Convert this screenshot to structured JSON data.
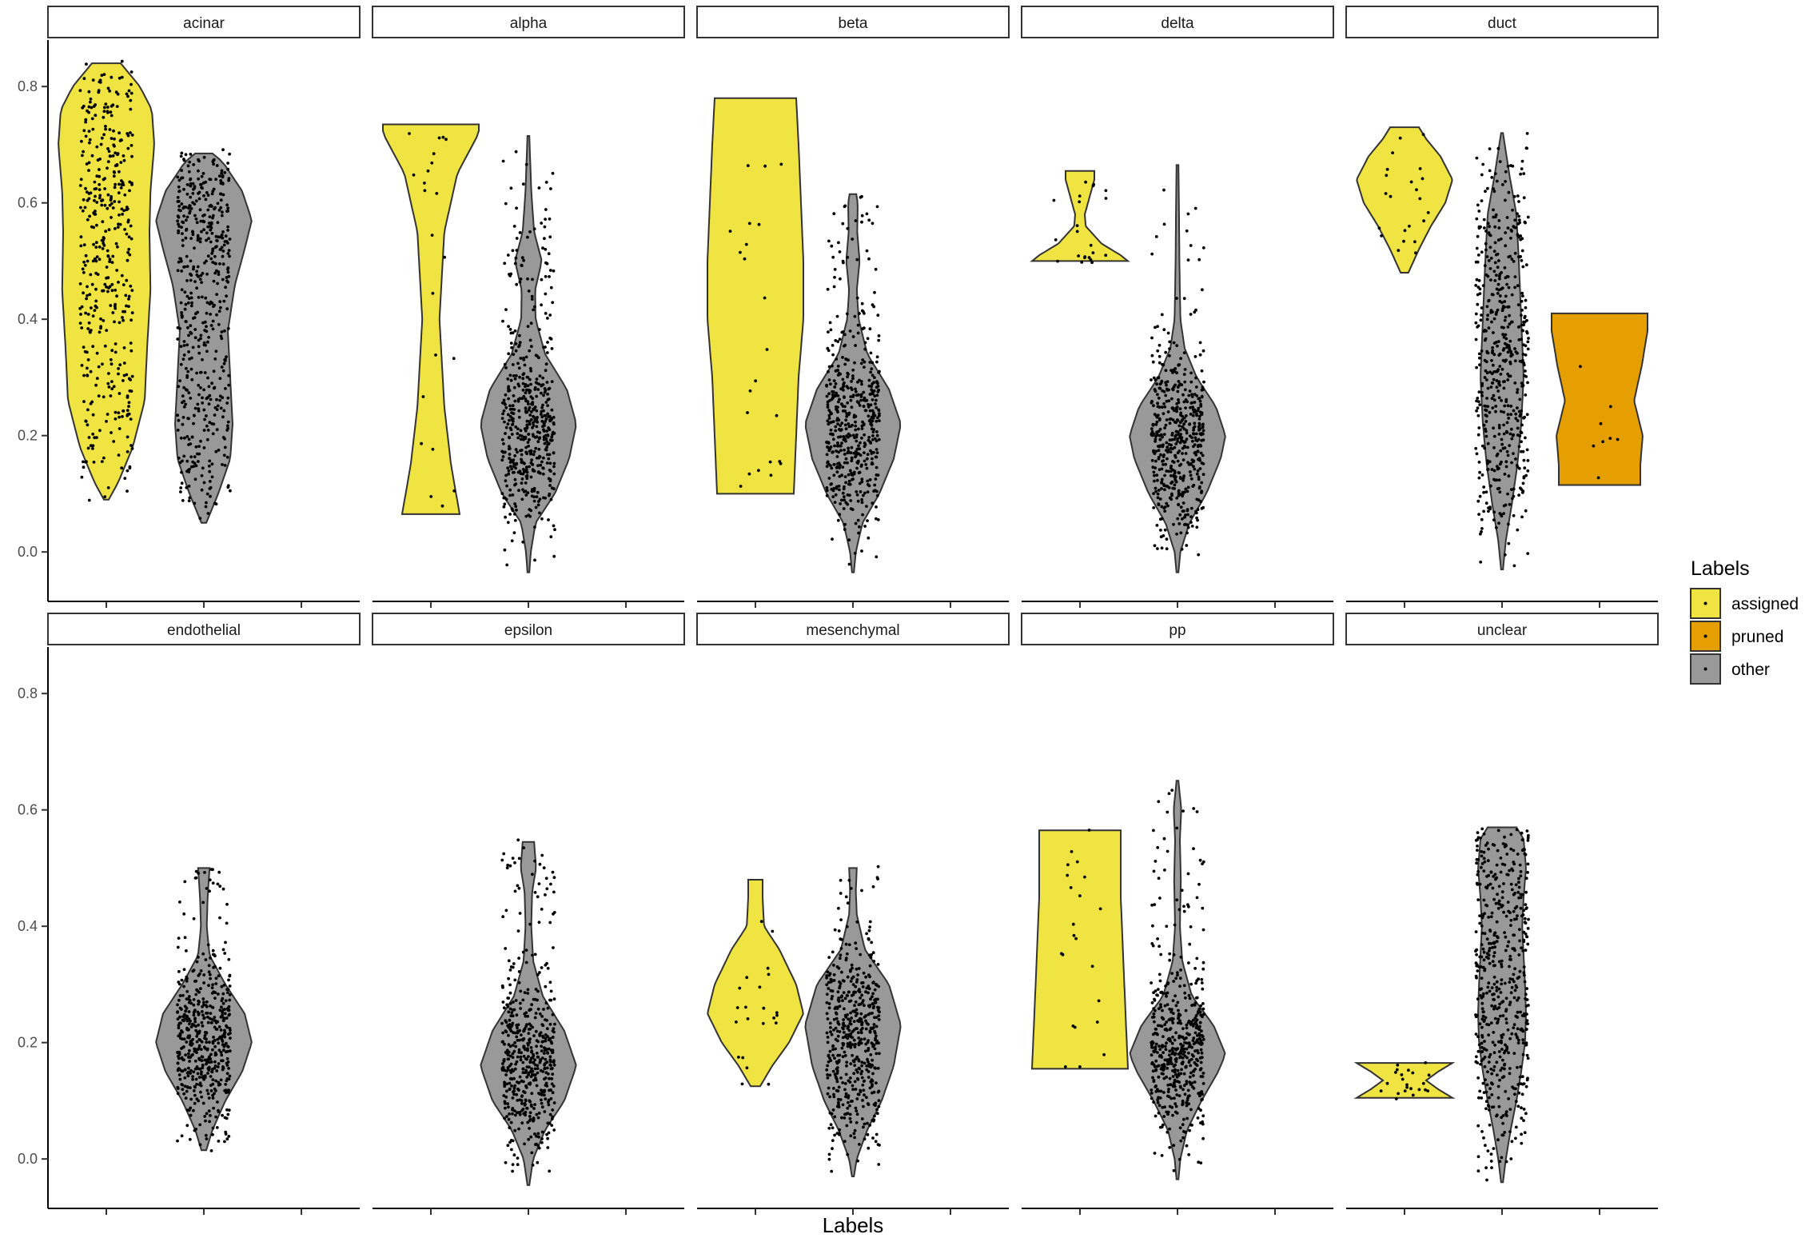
{
  "chart_data": {
    "type": "violin",
    "xlabel": "Labels",
    "ylabel": "",
    "ylim": [
      -0.085,
      0.88
    ],
    "yticks": [
      "0.0",
      "0.2",
      "0.4",
      "0.6",
      "0.8"
    ],
    "ytick_values": [
      0,
      0.2,
      0.4,
      0.6,
      0.8
    ],
    "grid": false,
    "legend": {
      "title": "Labels",
      "placement": "right",
      "entries": [
        {
          "label": "assigned",
          "color": "#F0E442"
        },
        {
          "label": "pruned",
          "color": "#E69F00"
        },
        {
          "label": "other",
          "color": "#999999"
        }
      ]
    },
    "x_positions": [
      "assigned",
      "other",
      "pruned"
    ],
    "panels": [
      {
        "name": "acinar",
        "violins": [
          {
            "group": "assigned",
            "min": 0.09,
            "max": 0.84,
            "profile": [
              [
                0.09,
                0.05
              ],
              [
                0.12,
                0.25
              ],
              [
                0.18,
                0.55
              ],
              [
                0.26,
                0.8
              ],
              [
                0.35,
                0.85
              ],
              [
                0.45,
                0.92
              ],
              [
                0.55,
                0.9
              ],
              [
                0.62,
                0.92
              ],
              [
                0.7,
                1.0
              ],
              [
                0.76,
                0.95
              ],
              [
                0.8,
                0.7
              ],
              [
                0.84,
                0.3
              ]
            ]
          },
          {
            "group": "other",
            "min": 0.05,
            "max": 0.685,
            "profile": [
              [
                0.05,
                0.05
              ],
              [
                0.1,
                0.3
              ],
              [
                0.16,
                0.55
              ],
              [
                0.22,
                0.6
              ],
              [
                0.3,
                0.55
              ],
              [
                0.38,
                0.5
              ],
              [
                0.46,
                0.65
              ],
              [
                0.52,
                0.85
              ],
              [
                0.57,
                1.0
              ],
              [
                0.62,
                0.8
              ],
              [
                0.67,
                0.4
              ],
              [
                0.685,
                0.18
              ]
            ]
          }
        ]
      },
      {
        "name": "alpha",
        "violins": [
          {
            "group": "assigned",
            "min": 0.065,
            "max": 0.735,
            "profile": [
              [
                0.065,
                0.6
              ],
              [
                0.15,
                0.42
              ],
              [
                0.25,
                0.28
              ],
              [
                0.4,
                0.18
              ],
              [
                0.55,
                0.28
              ],
              [
                0.65,
                0.55
              ],
              [
                0.72,
                1.0
              ],
              [
                0.735,
                1.0
              ]
            ]
          },
          {
            "group": "other",
            "min": -0.035,
            "max": 0.715,
            "profile": [
              [
                -0.035,
                0.02
              ],
              [
                0.0,
                0.05
              ],
              [
                0.05,
                0.15
              ],
              [
                0.1,
                0.55
              ],
              [
                0.16,
                0.85
              ],
              [
                0.22,
                1.0
              ],
              [
                0.28,
                0.8
              ],
              [
                0.34,
                0.35
              ],
              [
                0.4,
                0.15
              ],
              [
                0.45,
                0.14
              ],
              [
                0.5,
                0.28
              ],
              [
                0.55,
                0.12
              ],
              [
                0.62,
                0.06
              ],
              [
                0.715,
                0.02
              ]
            ]
          }
        ]
      },
      {
        "name": "beta",
        "violins": [
          {
            "group": "assigned",
            "min": 0.1,
            "max": 0.78,
            "profile": [
              [
                0.1,
                0.8
              ],
              [
                0.2,
                0.85
              ],
              [
                0.3,
                0.9
              ],
              [
                0.4,
                1.0
              ],
              [
                0.5,
                1.0
              ],
              [
                0.6,
                0.95
              ],
              [
                0.7,
                0.9
              ],
              [
                0.78,
                0.85
              ]
            ]
          },
          {
            "group": "other",
            "min": -0.035,
            "max": 0.615,
            "profile": [
              [
                -0.035,
                0.02
              ],
              [
                0.0,
                0.06
              ],
              [
                0.05,
                0.2
              ],
              [
                0.1,
                0.55
              ],
              [
                0.16,
                0.85
              ],
              [
                0.22,
                1.0
              ],
              [
                0.28,
                0.75
              ],
              [
                0.34,
                0.3
              ],
              [
                0.4,
                0.12
              ],
              [
                0.45,
                0.08
              ],
              [
                0.5,
                0.14
              ],
              [
                0.55,
                0.09
              ],
              [
                0.6,
                0.1
              ],
              [
                0.615,
                0.07
              ]
            ]
          }
        ]
      },
      {
        "name": "delta",
        "violins": [
          {
            "group": "assigned",
            "min": 0.5,
            "max": 0.655,
            "profile": [
              [
                0.5,
                1.0
              ],
              [
                0.51,
                0.85
              ],
              [
                0.53,
                0.45
              ],
              [
                0.56,
                0.12
              ],
              [
                0.58,
                0.1
              ],
              [
                0.61,
                0.2
              ],
              [
                0.64,
                0.3
              ],
              [
                0.655,
                0.3
              ]
            ]
          },
          {
            "group": "other",
            "min": -0.035,
            "max": 0.665,
            "profile": [
              [
                -0.035,
                0.02
              ],
              [
                0.0,
                0.06
              ],
              [
                0.05,
                0.25
              ],
              [
                0.1,
                0.6
              ],
              [
                0.16,
                0.9
              ],
              [
                0.2,
                1.0
              ],
              [
                0.25,
                0.8
              ],
              [
                0.3,
                0.4
              ],
              [
                0.35,
                0.15
              ],
              [
                0.4,
                0.06
              ],
              [
                0.5,
                0.04
              ],
              [
                0.6,
                0.03
              ],
              [
                0.665,
                0.02
              ]
            ]
          }
        ]
      },
      {
        "name": "duct",
        "violins": [
          {
            "group": "assigned",
            "min": 0.48,
            "max": 0.73,
            "profile": [
              [
                0.48,
                0.08
              ],
              [
                0.52,
                0.3
              ],
              [
                0.56,
                0.55
              ],
              [
                0.6,
                0.85
              ],
              [
                0.64,
                1.0
              ],
              [
                0.68,
                0.75
              ],
              [
                0.71,
                0.45
              ],
              [
                0.73,
                0.3
              ]
            ]
          },
          {
            "group": "pruned",
            "min": 0.115,
            "max": 0.41,
            "profile": [
              [
                0.115,
                0.85
              ],
              [
                0.15,
                0.85
              ],
              [
                0.2,
                0.9
              ],
              [
                0.26,
                0.72
              ],
              [
                0.32,
                0.88
              ],
              [
                0.38,
                1.0
              ],
              [
                0.41,
                1.0
              ]
            ]
          },
          {
            "group": "other",
            "min": -0.03,
            "max": 0.72,
            "profile": [
              [
                -0.03,
                0.02
              ],
              [
                0.02,
                0.08
              ],
              [
                0.08,
                0.2
              ],
              [
                0.15,
                0.32
              ],
              [
                0.22,
                0.4
              ],
              [
                0.3,
                0.45
              ],
              [
                0.4,
                0.4
              ],
              [
                0.5,
                0.35
              ],
              [
                0.58,
                0.3
              ],
              [
                0.65,
                0.15
              ],
              [
                0.72,
                0.02
              ]
            ]
          }
        ]
      },
      {
        "name": "endothelial",
        "violins": [
          {
            "group": "other",
            "min": 0.015,
            "max": 0.5,
            "profile": [
              [
                0.015,
                0.05
              ],
              [
                0.05,
                0.18
              ],
              [
                0.1,
                0.45
              ],
              [
                0.15,
                0.8
              ],
              [
                0.2,
                1.0
              ],
              [
                0.25,
                0.85
              ],
              [
                0.3,
                0.45
              ],
              [
                0.35,
                0.12
              ],
              [
                0.4,
                0.06
              ],
              [
                0.45,
                0.08
              ],
              [
                0.5,
                0.12
              ]
            ]
          }
        ]
      },
      {
        "name": "epsilon",
        "violins": [
          {
            "group": "other",
            "min": -0.045,
            "max": 0.545,
            "profile": [
              [
                -0.045,
                0.02
              ],
              [
                0.0,
                0.1
              ],
              [
                0.05,
                0.35
              ],
              [
                0.1,
                0.75
              ],
              [
                0.16,
                1.0
              ],
              [
                0.22,
                0.75
              ],
              [
                0.28,
                0.3
              ],
              [
                0.34,
                0.1
              ],
              [
                0.4,
                0.06
              ],
              [
                0.46,
                0.08
              ],
              [
                0.5,
                0.16
              ],
              [
                0.545,
                0.12
              ]
            ]
          }
        ]
      },
      {
        "name": "mesenchymal",
        "violins": [
          {
            "group": "assigned",
            "min": 0.125,
            "max": 0.48,
            "profile": [
              [
                0.125,
                0.1
              ],
              [
                0.16,
                0.35
              ],
              [
                0.2,
                0.7
              ],
              [
                0.25,
                1.0
              ],
              [
                0.3,
                0.85
              ],
              [
                0.36,
                0.5
              ],
              [
                0.4,
                0.18
              ],
              [
                0.45,
                0.15
              ],
              [
                0.48,
                0.15
              ]
            ]
          },
          {
            "group": "other",
            "min": -0.03,
            "max": 0.5,
            "profile": [
              [
                -0.03,
                0.02
              ],
              [
                0.0,
                0.08
              ],
              [
                0.05,
                0.3
              ],
              [
                0.1,
                0.6
              ],
              [
                0.16,
                0.85
              ],
              [
                0.23,
                1.0
              ],
              [
                0.3,
                0.75
              ],
              [
                0.36,
                0.25
              ],
              [
                0.42,
                0.08
              ],
              [
                0.46,
                0.06
              ],
              [
                0.5,
                0.08
              ]
            ]
          }
        ]
      },
      {
        "name": "pp",
        "violins": [
          {
            "group": "assigned",
            "min": 0.155,
            "max": 0.565,
            "profile": [
              [
                0.155,
                1.0
              ],
              [
                0.25,
                0.95
              ],
              [
                0.35,
                0.9
              ],
              [
                0.45,
                0.85
              ],
              [
                0.55,
                0.85
              ],
              [
                0.565,
                0.85
              ]
            ]
          },
          {
            "group": "other",
            "min": -0.035,
            "max": 0.65,
            "profile": [
              [
                -0.035,
                0.02
              ],
              [
                0.0,
                0.06
              ],
              [
                0.05,
                0.2
              ],
              [
                0.1,
                0.5
              ],
              [
                0.15,
                0.85
              ],
              [
                0.18,
                1.0
              ],
              [
                0.23,
                0.75
              ],
              [
                0.28,
                0.3
              ],
              [
                0.34,
                0.1
              ],
              [
                0.4,
                0.05
              ],
              [
                0.48,
                0.07
              ],
              [
                0.55,
                0.05
              ],
              [
                0.6,
                0.08
              ],
              [
                0.65,
                0.02
              ]
            ]
          }
        ]
      },
      {
        "name": "unclear",
        "violins": [
          {
            "group": "assigned",
            "min": 0.105,
            "max": 0.165,
            "profile": [
              [
                0.105,
                1.0
              ],
              [
                0.12,
                0.7
              ],
              [
                0.135,
                0.45
              ],
              [
                0.15,
                0.7
              ],
              [
                0.165,
                1.0
              ]
            ]
          },
          {
            "group": "other",
            "min": -0.04,
            "max": 0.57,
            "profile": [
              [
                -0.04,
                0.02
              ],
              [
                0.0,
                0.08
              ],
              [
                0.05,
                0.18
              ],
              [
                0.1,
                0.3
              ],
              [
                0.15,
                0.4
              ],
              [
                0.2,
                0.48
              ],
              [
                0.25,
                0.5
              ],
              [
                0.3,
                0.48
              ],
              [
                0.35,
                0.45
              ],
              [
                0.4,
                0.42
              ],
              [
                0.45,
                0.45
              ],
              [
                0.5,
                0.5
              ],
              [
                0.55,
                0.45
              ],
              [
                0.57,
                0.3
              ]
            ]
          }
        ]
      }
    ]
  }
}
